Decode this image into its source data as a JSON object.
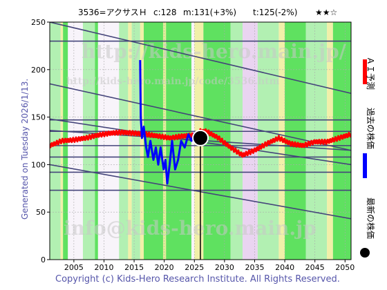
{
  "header": {
    "code_name": "3536=アクサスＨ",
    "close_label": "c:128",
    "mid_label": "m:131(+3%)",
    "target_label": "t:125(-2%)",
    "rating": "★★☆"
  },
  "side_left": "Generated on Tuesday 2026/1/13.",
  "legend": [
    {
      "label": "ＡＩ予測",
      "color": "#ff0000"
    },
    {
      "label": "過去の株価",
      "color": "#0000ff"
    },
    {
      "label": "最新の株価",
      "color": "#000000"
    }
  ],
  "footer": "Copyright (c) Kids-Hero Research Institute. All Rights Reserved.",
  "watermarks": [
    "http://kids-hero.main.jp/",
    "http://kids-hero.main.jp/code/3536.htm",
    "info@kids-hero.main.jp"
  ],
  "colors": {
    "ai": "#ff0000",
    "past": "#0000ff",
    "latest": "#000000",
    "trend": "#44447a",
    "band_green": "#44dd44",
    "band_light": "#aaf0aa",
    "band_yellow": "#f0f0a0",
    "band_lav": "#e8d0f0"
  },
  "chart_data": {
    "type": "line",
    "xlim": [
      2001,
      2051
    ],
    "ylim": [
      0,
      250
    ],
    "xticks": [
      2005,
      2010,
      2015,
      2020,
      2025,
      2030,
      2035,
      2040,
      2045,
      2050
    ],
    "yticks": [
      0,
      50,
      100,
      150,
      200,
      250
    ],
    "latest_point": {
      "x": 2026.0,
      "y": 128
    },
    "series": [
      {
        "name": "ＡＩ予測",
        "x": [
          2001,
          2003,
          2005,
          2007,
          2009,
          2011,
          2013,
          2015,
          2017,
          2019,
          2021,
          2023,
          2025,
          2026,
          2027,
          2029,
          2031,
          2033,
          2035,
          2037,
          2039,
          2041,
          2043,
          2045,
          2047,
          2049,
          2051
        ],
        "y": [
          120,
          125,
          126,
          128,
          131,
          133,
          134,
          133,
          132,
          130,
          128,
          130,
          131,
          135,
          135,
          128,
          118,
          110,
          115,
          122,
          128,
          122,
          120,
          124,
          124,
          128,
          132
        ]
      },
      {
        "name": "過去の株価",
        "x": [
          2016.0,
          2016.1,
          2016.3,
          2016.6,
          2017.0,
          2017.3,
          2017.7,
          2018.2,
          2018.6,
          2019.0,
          2019.4,
          2019.9,
          2020.2,
          2020.5,
          2020.9,
          2021.3,
          2021.8,
          2022.3,
          2022.8,
          2023.4,
          2024.0,
          2024.5,
          2025.0,
          2025.5
        ],
        "y": [
          210,
          150,
          128,
          140,
          118,
          108,
          125,
          105,
          118,
          100,
          118,
          95,
          105,
          80,
          100,
          125,
          95,
          105,
          125,
          118,
          132,
          125,
          133,
          130
        ]
      }
    ],
    "trend_lines": [
      [
        2001,
        230,
        2051,
        230
      ],
      [
        2001,
        147,
        2051,
        147
      ],
      [
        2001,
        135,
        2051,
        135
      ],
      [
        2001,
        120,
        2051,
        120
      ],
      [
        2001,
        108,
        2051,
        108
      ],
      [
        2001,
        92,
        2051,
        92
      ],
      [
        2001,
        73,
        2051,
        73
      ],
      [
        2001,
        250,
        2051,
        175
      ],
      [
        2001,
        148,
        2051,
        100
      ],
      [
        2001,
        136,
        2051,
        115
      ],
      [
        2001,
        100,
        2051,
        43
      ],
      [
        2001,
        185,
        2051,
        115
      ]
    ],
    "bands": [
      {
        "x0": 2001.0,
        "x1": 2002.8,
        "kind": "light"
      },
      {
        "x0": 2002.8,
        "x1": 2003.2,
        "kind": "yellow"
      },
      {
        "x0": 2003.2,
        "x1": 2004.0,
        "kind": "green"
      },
      {
        "x0": 2006.5,
        "x1": 2008.5,
        "kind": "light"
      },
      {
        "x0": 2008.5,
        "x1": 2009.0,
        "kind": "green"
      },
      {
        "x0": 2012.5,
        "x1": 2014.0,
        "kind": "light"
      },
      {
        "x0": 2014.0,
        "x1": 2014.6,
        "kind": "yellow"
      },
      {
        "x0": 2014.6,
        "x1": 2016.0,
        "kind": "light"
      },
      {
        "x0": 2016.0,
        "x1": 2016.6,
        "kind": "yellow"
      },
      {
        "x0": 2016.6,
        "x1": 2024.5,
        "kind": "green"
      },
      {
        "x0": 2019.8,
        "x1": 2020.3,
        "kind": "yellow"
      },
      {
        "x0": 2025.0,
        "x1": 2026.5,
        "kind": "yellow"
      },
      {
        "x0": 2026.5,
        "x1": 2031.0,
        "kind": "green"
      },
      {
        "x0": 2031.0,
        "x1": 2033.0,
        "kind": "light"
      },
      {
        "x0": 2033.0,
        "x1": 2035.5,
        "kind": "lav"
      },
      {
        "x0": 2035.5,
        "x1": 2039.0,
        "kind": "light"
      },
      {
        "x0": 2039.0,
        "x1": 2040.0,
        "kind": "yellow"
      },
      {
        "x0": 2040.0,
        "x1": 2043.5,
        "kind": "green"
      },
      {
        "x0": 2043.5,
        "x1": 2047.0,
        "kind": "light"
      },
      {
        "x0": 2047.0,
        "x1": 2048.0,
        "kind": "yellow"
      },
      {
        "x0": 2048.0,
        "x1": 2051.0,
        "kind": "green"
      }
    ]
  }
}
